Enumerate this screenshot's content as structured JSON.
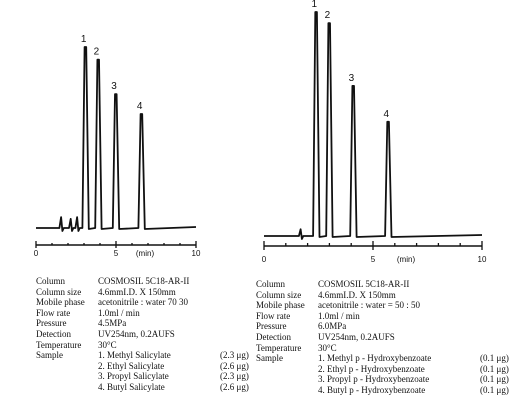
{
  "chart_data": [
    {
      "type": "line",
      "xlim": [
        0,
        10
      ],
      "x_ticks": [
        "0",
        "5",
        "10"
      ],
      "x_unit": "(min)",
      "baseline": {
        "start": 0,
        "end": 10
      },
      "peaks": [
        {
          "label": "1",
          "rt": 3.1,
          "height": 1.0
        },
        {
          "label": "2",
          "rt": 3.9,
          "height": 0.93
        },
        {
          "label": "3",
          "rt": 5.0,
          "height": 0.74
        },
        {
          "label": "4",
          "rt": 6.6,
          "height": 0.63
        }
      ],
      "minor_peaks": [
        {
          "rt": 1.6,
          "height": 0.06
        },
        {
          "rt": 2.2,
          "height": 0.05
        },
        {
          "rt": 2.6,
          "height": 0.06
        }
      ],
      "conditions": [
        {
          "key": "Column",
          "value": "COSMOSIL 5C18-AR-II"
        },
        {
          "key": "Column size",
          "value": "4.6mmI.D. X 150mm"
        },
        {
          "key": "Mobile phase",
          "value": "acetonitrile : water 70 30"
        },
        {
          "key": "Flow rate",
          "value": "1.0ml / min"
        },
        {
          "key": "Pressure",
          "value": "4.5MPa"
        },
        {
          "key": "Detection",
          "value": "UV254nm, 0.2AUFS"
        },
        {
          "key": "Temperature",
          "value": "30°C"
        }
      ],
      "sample_label": "Sample",
      "samples": [
        {
          "name": "1. Methyl Salicylate",
          "amount": "(2.3 μg)"
        },
        {
          "name": "2. Ethyl Salicylate",
          "amount": "(2.6 μg)"
        },
        {
          "name": "3. Propyl Salicylate",
          "amount": "(2.3 μg)"
        },
        {
          "name": "4. Butyl Salicylate",
          "amount": "(2.6 μg)"
        }
      ]
    },
    {
      "type": "line",
      "xlim": [
        0,
        10
      ],
      "x_ticks": [
        "0",
        "5",
        "10"
      ],
      "x_unit": "(min)",
      "baseline": {
        "start": 0,
        "end": 10
      },
      "peaks": [
        {
          "label": "1",
          "rt": 2.4,
          "height": 1.0
        },
        {
          "label": "2",
          "rt": 3.0,
          "height": 0.95
        },
        {
          "label": "3",
          "rt": 4.1,
          "height": 0.67
        },
        {
          "label": "4",
          "rt": 5.7,
          "height": 0.51
        }
      ],
      "minor_peaks": [
        {
          "rt": 1.7,
          "height": 0.03
        }
      ],
      "conditions": [
        {
          "key": "Column",
          "value": "COSMOSIL 5C18-AR-II"
        },
        {
          "key": "Column size",
          "value": "4.6mmI.D. X 150mm"
        },
        {
          "key": "Mobile phase",
          "value": "acetonitrile : water = 50 : 50"
        },
        {
          "key": "Flow rate",
          "value": "1.0ml / min"
        },
        {
          "key": "Pressure",
          "value": "6.0MPa"
        },
        {
          "key": "Detection",
          "value": "UV254nm, 0.2AUFS"
        },
        {
          "key": "Temperature",
          "value": "30°C"
        }
      ],
      "sample_label": "Sample",
      "samples": [
        {
          "name": "1. Methyl p - Hydroxybenzoate",
          "amount": "(0.1 μg)"
        },
        {
          "name": "2. Ethyl p - Hydroxybenzoate",
          "amount": "(0.1 μg)"
        },
        {
          "name": "3. Propyl p - Hydroxybenzoate",
          "amount": "(0.1 μg)"
        },
        {
          "name": "4. Butyl p - Hydroxybenzoate",
          "amount": "(0.1 μg)"
        }
      ]
    }
  ]
}
